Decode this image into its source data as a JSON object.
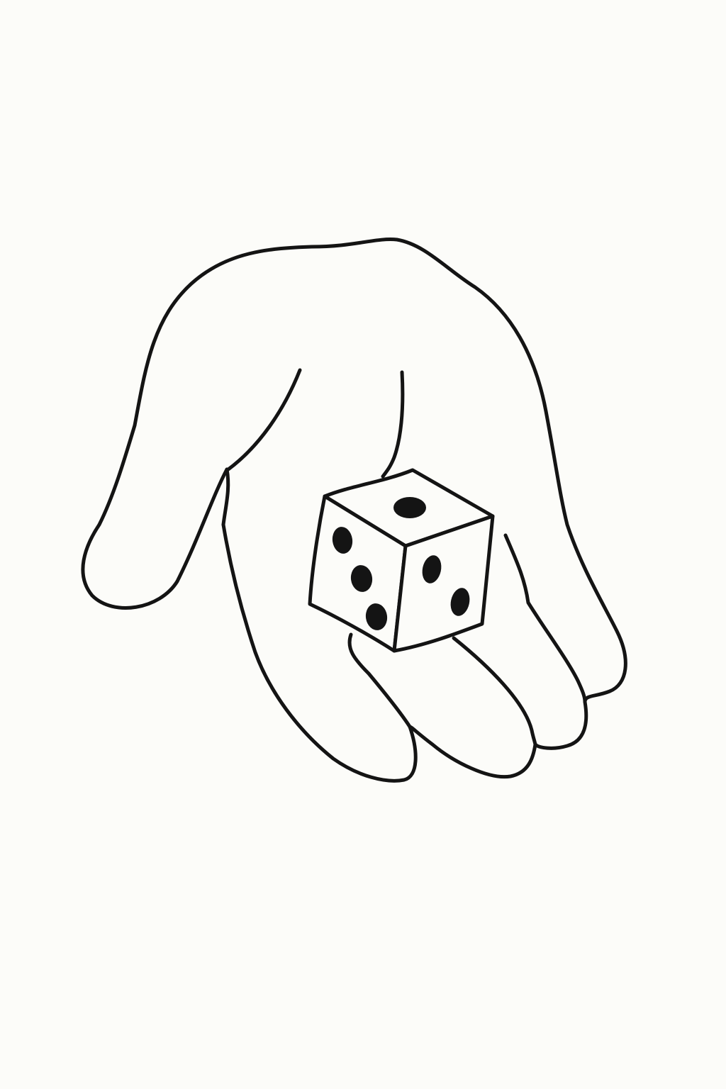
{
  "colors": {
    "background": "#fcfcf9",
    "ink": "#141414",
    "die_fill": "#fcfcf9"
  },
  "illustration": {
    "subject": "hand-holding-die-icon",
    "die": {
      "top_face_pips": 1,
      "left_face_pips": 3,
      "right_face_pips": 2
    }
  }
}
